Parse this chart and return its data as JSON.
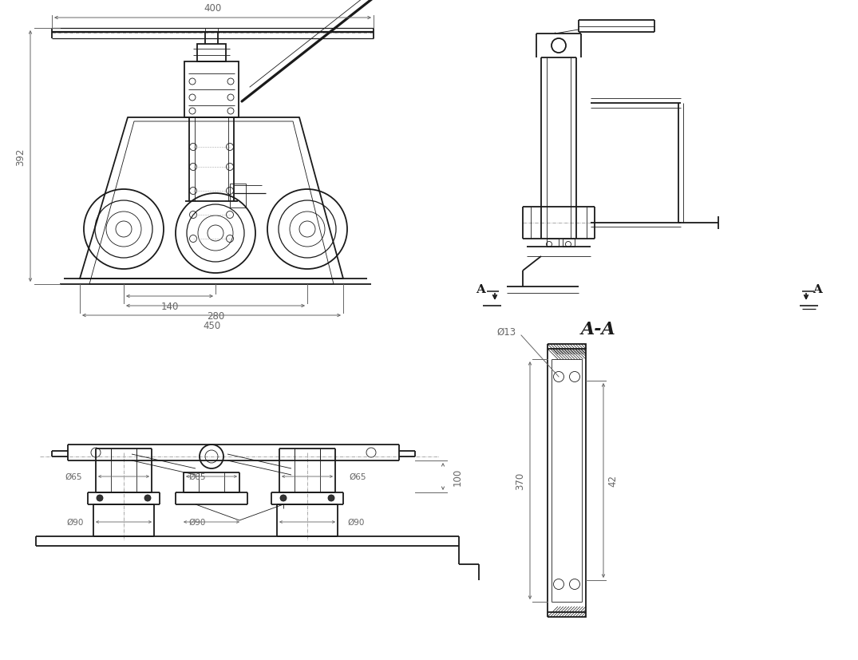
{
  "bg_color": "#ffffff",
  "line_color": "#1a1a1a",
  "dim_color": "#666666",
  "dimensions": {
    "dim_400": "400",
    "dim_392": "392",
    "dim_140": "140",
    "dim_280": "280",
    "dim_450": "450",
    "dim_100": "100",
    "phi65": "Ø65",
    "phi90": "Ø90",
    "phi13": "Ø13",
    "dim_370": "370",
    "dim_42": "42",
    "section_label": "A-A"
  }
}
